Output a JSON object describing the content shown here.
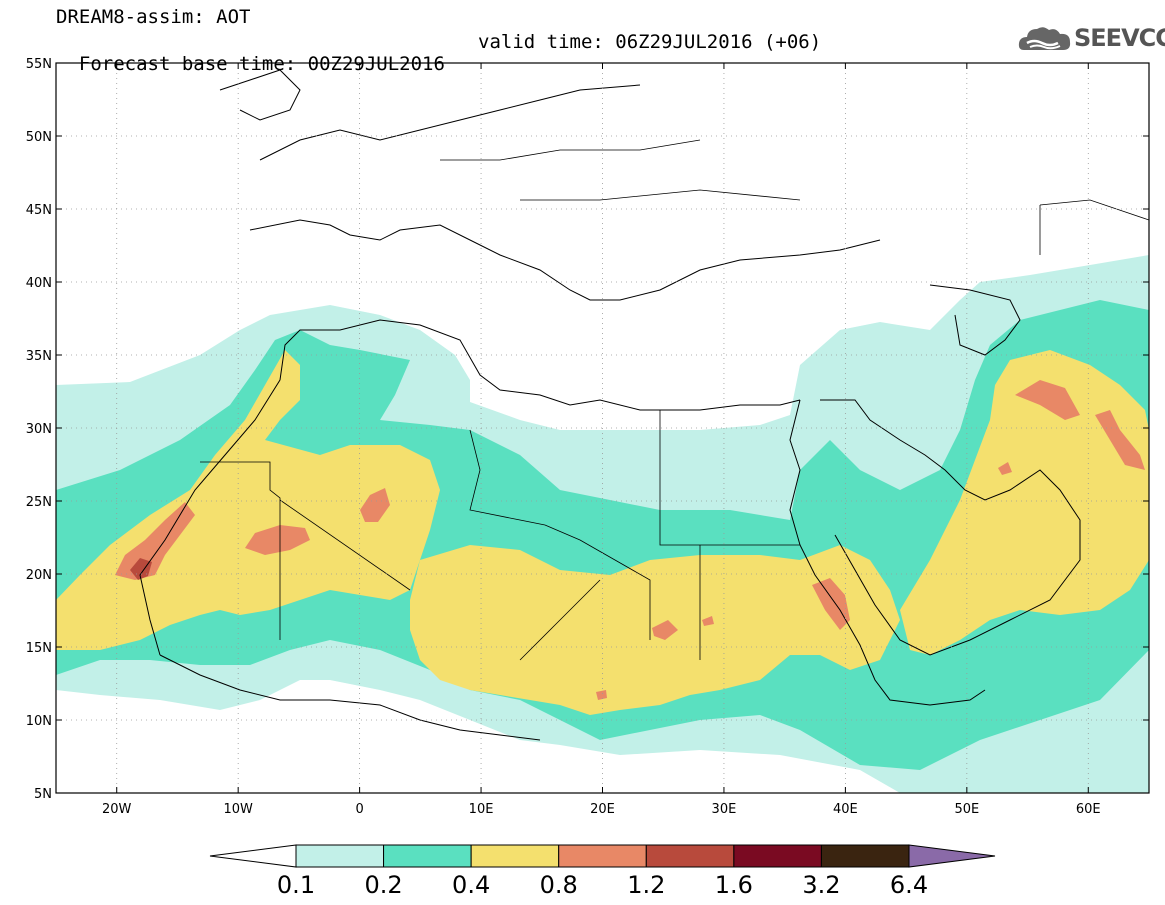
{
  "header": {
    "title": "DREAM8-assim: AOT",
    "base_time": "Forecast base time: 00Z29JUL2016",
    "valid_time": "valid time: 06Z29JUL2016 (+06)",
    "logo_text": "SEEVCCC"
  },
  "map": {
    "lat_range": [
      5,
      55
    ],
    "lon_range": [
      -25,
      65
    ],
    "lat_labels": [
      "55N",
      "50N",
      "45N",
      "40N",
      "35N",
      "30N",
      "25N",
      "20N",
      "15N",
      "10N",
      "5N"
    ],
    "lon_labels": [
      "20W",
      "10W",
      "0",
      "10E",
      "20E",
      "30E",
      "40E",
      "50E",
      "60E"
    ]
  },
  "legend": {
    "levels": [
      "0.1",
      "0.2",
      "0.4",
      "0.8",
      "1.2",
      "1.6",
      "3.2",
      "6.4"
    ],
    "colors": [
      "#ffffff",
      "#c2f0e8",
      "#5ae0c0",
      "#f4e06e",
      "#e88866",
      "#b84a3c",
      "#7a0a22",
      "#3a2410",
      "#8a6aa8"
    ]
  },
  "field_colors": {
    "c02": "#c2f0e8",
    "c04": "#5ae0c0",
    "c08": "#f4e06e",
    "c12": "#e88866",
    "c16": "#b84a3c"
  }
}
